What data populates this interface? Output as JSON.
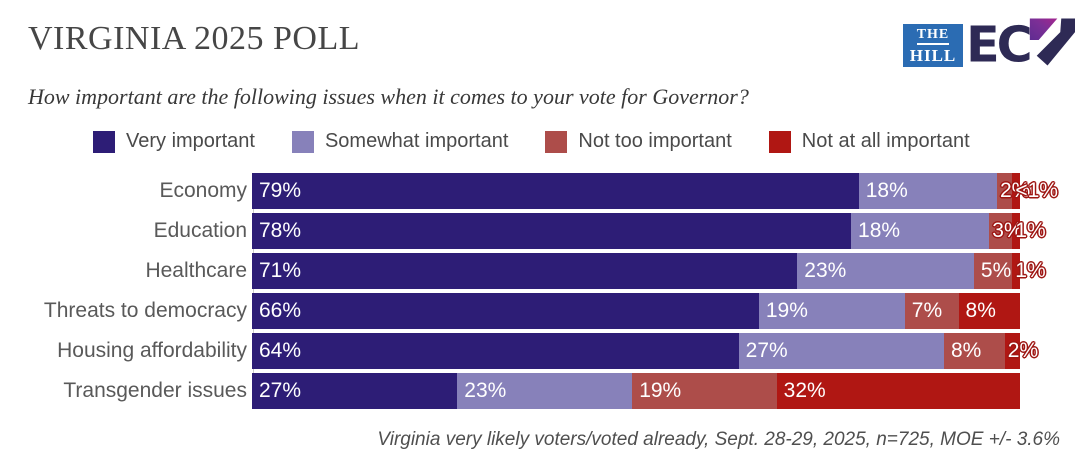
{
  "header": {
    "title": "VIRGINIA 2025 POLL",
    "subtitle": "How important are the following issues when it comes to your vote for Governor?"
  },
  "brand": {
    "hill_line1": "THE",
    "hill_line2": "HILL",
    "hill_bg_color": "#2b6cb3",
    "ecp_text": "EC",
    "ecp_dark_color": "#2e2a55",
    "ecp_purple_color": "#7b2f96",
    "ecp_magenta_color": "#a4268f"
  },
  "footer": {
    "note": "Virginia very likely voters/voted already, Sept. 28-29, 2025, n=725, MOE +/- 3.6%"
  },
  "chart_data": {
    "type": "bar",
    "orientation": "horizontal",
    "stacked": true,
    "legend_position": "top",
    "xlim": [
      0,
      100
    ],
    "categories": [
      "Economy",
      "Education",
      "Healthcare",
      "Threats to democracy",
      "Housing affordability",
      "Transgender issues"
    ],
    "series": [
      {
        "name": "Very important",
        "color": "#2d1d76",
        "values": [
          79,
          78,
          71,
          66,
          64,
          27
        ],
        "display": [
          "79%",
          "78%",
          "71%",
          "66%",
          "64%",
          "27%"
        ]
      },
      {
        "name": "Somewhat important",
        "color": "#8781ba",
        "values": [
          18,
          18,
          23,
          19,
          27,
          23
        ],
        "display": [
          "18%",
          "18%",
          "23%",
          "19%",
          "27%",
          "23%"
        ]
      },
      {
        "name": "Not too important",
        "color": "#ad4d4a",
        "values": [
          2,
          3,
          5,
          7,
          8,
          19
        ],
        "display": [
          "2%",
          "3%",
          "5%",
          "7%",
          "8%",
          "19%"
        ]
      },
      {
        "name": "Not at all important",
        "color": "#b01713",
        "values": [
          1,
          1,
          1,
          8,
          2,
          32
        ],
        "display": [
          "<1%",
          "1%",
          "1%",
          "8%",
          "2%",
          "32%"
        ]
      }
    ]
  }
}
